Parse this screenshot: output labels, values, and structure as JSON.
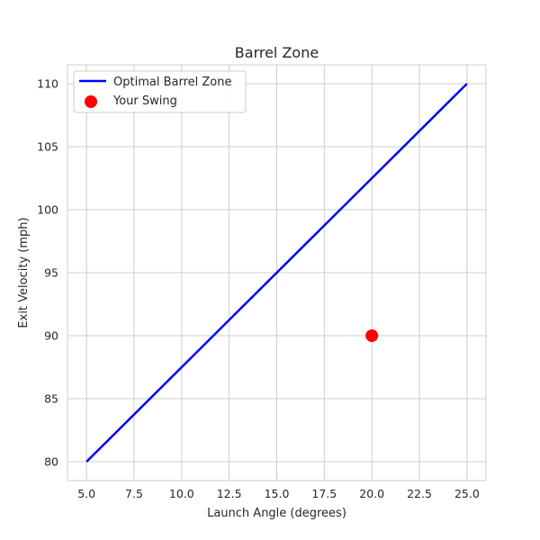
{
  "chart_data": {
    "type": "line",
    "title": "Barrel Zone",
    "xlabel": "Launch Angle (degrees)",
    "ylabel": "Exit Velocity (mph)",
    "xlim": [
      4.0,
      26.0
    ],
    "ylim": [
      78.5,
      111.5
    ],
    "xticks": [
      "5.0",
      "7.5",
      "10.0",
      "12.5",
      "15.0",
      "17.5",
      "20.0",
      "22.5",
      "25.0"
    ],
    "yticks": [
      "80",
      "85",
      "90",
      "95",
      "100",
      "105",
      "110"
    ],
    "grid": true,
    "legend_position": "top-left",
    "series": [
      {
        "name": "Optimal Barrel Zone",
        "type": "line",
        "color": "#0000ff",
        "x": [
          5,
          25
        ],
        "y": [
          80,
          110
        ]
      },
      {
        "name": "Your Swing",
        "type": "scatter",
        "color": "#ff0000",
        "x": [
          20
        ],
        "y": [
          90
        ]
      }
    ]
  }
}
